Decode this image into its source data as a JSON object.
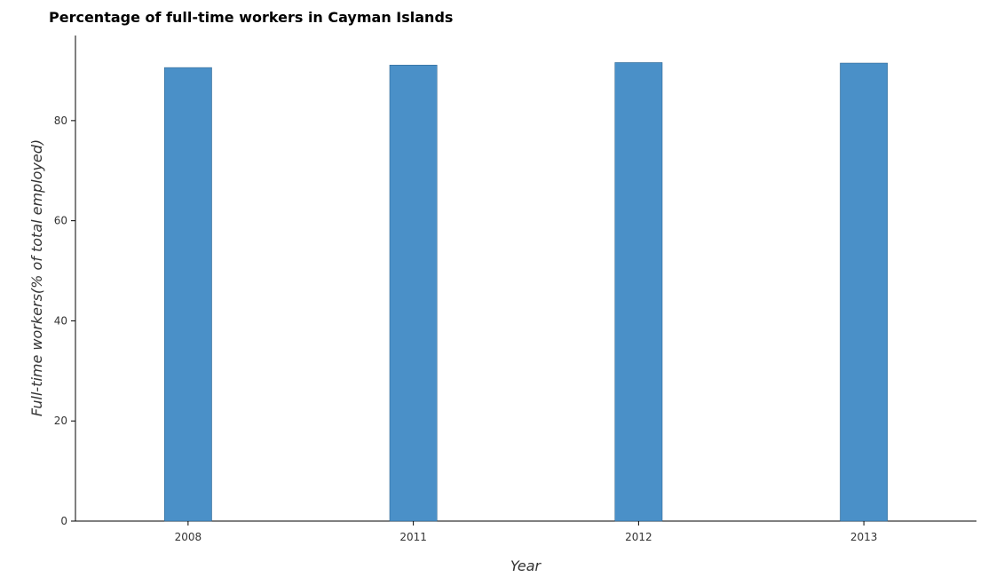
{
  "chart_data": {
    "type": "bar",
    "title": "Percentage of full-time workers in Cayman Islands",
    "xlabel": "Year",
    "ylabel": "Full-time workers(% of total employed)",
    "categories": [
      "2008",
      "2011",
      "2012",
      "2013"
    ],
    "values": [
      90.6,
      91.1,
      91.6,
      91.5
    ],
    "ylim": [
      0,
      97
    ],
    "yticks": [
      "0",
      "20",
      "40",
      "60",
      "80"
    ],
    "bar_color": "#4a90c8",
    "grid": false,
    "legend": false
  }
}
